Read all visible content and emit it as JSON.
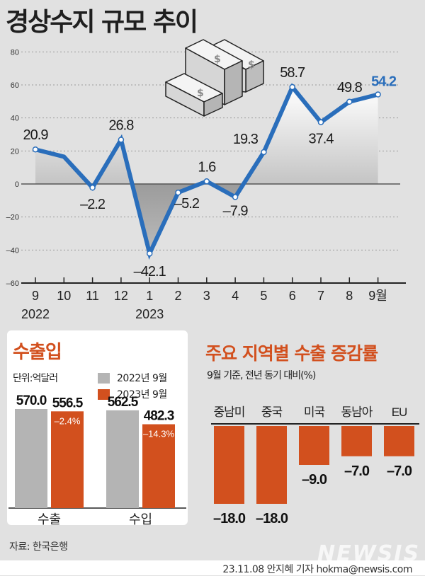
{
  "title": "경상수지 규모 추이",
  "chart_data": [
    {
      "type": "line",
      "title": "경상수지 규모 추이",
      "xlabel": "",
      "ylabel": "",
      "ylim": [
        -60,
        80
      ],
      "yticks": [
        80,
        60,
        40,
        20,
        0,
        -20,
        -40,
        -60
      ],
      "grid": true,
      "categories": [
        "9",
        "10",
        "11",
        "12",
        "1",
        "2",
        "3",
        "4",
        "5",
        "6",
        "7",
        "8",
        "9월"
      ],
      "year_labels": [
        {
          "label": "2022",
          "at_index": 0
        },
        {
          "label": "2023",
          "at_index": 4
        }
      ],
      "values": [
        20.9,
        16.5,
        -2.2,
        26.8,
        -42.1,
        -5.2,
        1.6,
        -7.9,
        19.3,
        58.7,
        37.4,
        49.8,
        54.2
      ],
      "data_labels": [
        "20.9",
        "",
        "-2.2",
        "26.8",
        "-42.1",
        "-5.2",
        "1.6",
        "-7.9",
        "19.3",
        "58.7",
        "37.4",
        "49.8",
        "54.2"
      ],
      "line_color": "#2a6ebb",
      "highlight_last_color": "#2a6ebb"
    },
    {
      "type": "bar",
      "title": "수출입",
      "unit": "단위:억달러",
      "categories": [
        "수출",
        "수입"
      ],
      "series": [
        {
          "name": "2022년 9월",
          "color": "#b4b4b4",
          "values": [
            570.0,
            562.5
          ]
        },
        {
          "name": "2023년 9월",
          "color": "#d2501e",
          "values": [
            556.5,
            482.3
          ]
        }
      ],
      "annotations": [
        "-2.4%",
        "-14.3%"
      ]
    },
    {
      "type": "bar",
      "title": "주요 지역별 수출 증감률",
      "subtitle": "9월 기준, 전년 동기 대비(%)",
      "categories": [
        "중남미",
        "중국",
        "미국",
        "동남아",
        "EU"
      ],
      "values": [
        -18.0,
        -18.0,
        -9.0,
        -7.0,
        -7.0
      ],
      "color": "#d2501e"
    }
  ],
  "trade": {
    "title": "수출입",
    "unit": "단위:억달러",
    "legend": [
      "2022년 9월",
      "2023년 9월"
    ]
  },
  "regions": {
    "title": "주요 지역별 수출 증감률",
    "subtitle": "9월 기준, 전년 동기 대비(%)"
  },
  "source": "자료: 한국은행",
  "credit": "23.11.08 안지혜 기자 hokma@newsis.com",
  "watermark": "NEWSIS"
}
